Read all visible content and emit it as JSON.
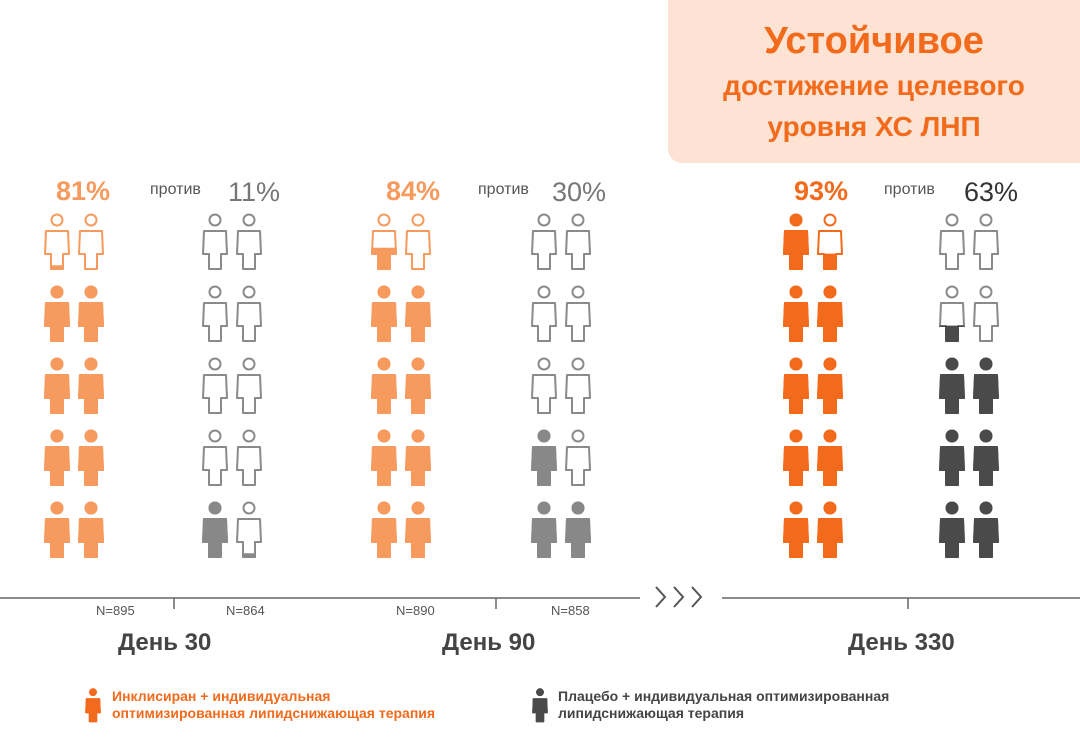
{
  "title": {
    "line1": "Устойчивое",
    "line2": "достижение целевого",
    "line3": "уровня ХС ЛНП"
  },
  "versus_label": "против",
  "colors": {
    "orange_light": "#f79a5e",
    "orange_strong": "#f26a1b",
    "gray": "#888888",
    "dark_gray": "#4a4a4a",
    "outline_gray": "#8a8a8a",
    "axis": "#666666",
    "title_bg": "#fde3d3"
  },
  "chart_data": {
    "type": "pictograph",
    "icons_per_group": 10,
    "groups": [
      {
        "day": "День 30",
        "treatment": {
          "percent": 81,
          "label": "81%",
          "n": "N=895"
        },
        "placebo": {
          "percent": 11,
          "label": "11%",
          "n": "N=864"
        }
      },
      {
        "day": "День 90",
        "treatment": {
          "percent": 84,
          "label": "84%",
          "n": "N=890"
        },
        "placebo": {
          "percent": 30,
          "label": "30%",
          "n": "N=858"
        }
      },
      {
        "day": "День 330",
        "treatment": {
          "percent": 93,
          "label": "93%",
          "n": ""
        },
        "placebo": {
          "percent": 63,
          "label": "63%",
          "n": ""
        }
      }
    ],
    "legend": [
      {
        "series": "treatment",
        "text_line1": "Инклисиран + индивидуальная",
        "text_line2": "оптимизированная липидснижающая терапия"
      },
      {
        "series": "placebo",
        "text_line1": "Плацебо + индивидуальная оптимизированная",
        "text_line2": "липидснижающая терапия"
      }
    ],
    "axis_gap_symbol": "›››"
  }
}
